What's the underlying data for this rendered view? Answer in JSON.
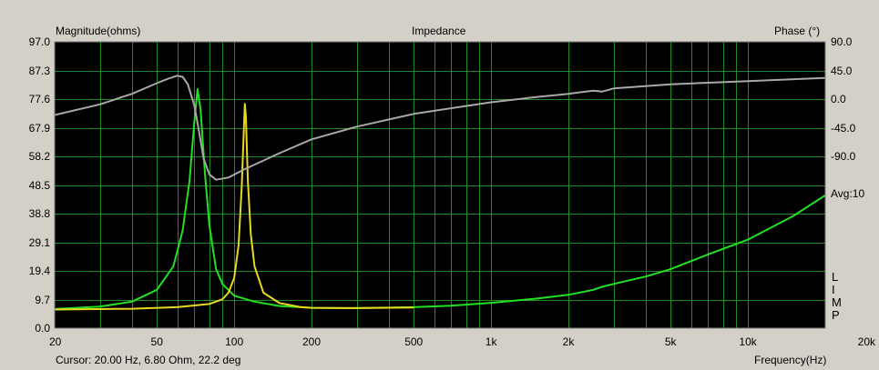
{
  "chart_data": {
    "type": "line",
    "title": "Impedance",
    "ylabel_left": "Magnitude(ohms)",
    "ylabel_right": "Phase (°)",
    "xlabel": "Frequency(Hz)",
    "x_scale": "log",
    "xlim": [
      20,
      20000
    ],
    "ylim_left": [
      0,
      97
    ],
    "ylim_right": [
      -180,
      90
    ],
    "grid": true,
    "background": "#000000",
    "grid_color": "#1f8a1f",
    "y_ticks_left": [
      "97.0",
      "87.3",
      "77.6",
      "67.9",
      "58.2",
      "48.5",
      "38.8",
      "29.1",
      "19.4",
      "9.7",
      "0.0"
    ],
    "y_ticks_right": [
      "90.0",
      "45.0",
      "0.0",
      "-45.0",
      "-90.0"
    ],
    "x_ticks": [
      {
        "value": 20,
        "label": "20"
      },
      {
        "value": 50,
        "label": "50"
      },
      {
        "value": 100,
        "label": "100"
      },
      {
        "value": 200,
        "label": "200"
      },
      {
        "value": 500,
        "label": "500"
      },
      {
        "value": 1000,
        "label": "1k"
      },
      {
        "value": 2000,
        "label": "2k"
      },
      {
        "value": 5000,
        "label": "5k"
      },
      {
        "value": 10000,
        "label": "10k"
      },
      {
        "value": 20000,
        "label": "20k"
      }
    ],
    "annotation_avg": "Avg:10",
    "annotation_limp": [
      "L",
      "I",
      "M",
      "P"
    ],
    "series": [
      {
        "color": "#22e022",
        "axis": "left",
        "points": [
          [
            20,
            6.5
          ],
          [
            30,
            7.3
          ],
          [
            40,
            9
          ],
          [
            50,
            13
          ],
          [
            58,
            21
          ],
          [
            63,
            33
          ],
          [
            67,
            50
          ],
          [
            70,
            70
          ],
          [
            72,
            81
          ],
          [
            74,
            74
          ],
          [
            77,
            52
          ],
          [
            80,
            35
          ],
          [
            85,
            20
          ],
          [
            90,
            15
          ],
          [
            100,
            11
          ],
          [
            120,
            9
          ],
          [
            150,
            7.5
          ],
          [
            200,
            6.9
          ],
          [
            300,
            6.8
          ],
          [
            500,
            7.1
          ],
          [
            700,
            7.6
          ],
          [
            1000,
            8.6
          ],
          [
            1500,
            10
          ],
          [
            2000,
            11.3
          ],
          [
            2500,
            13
          ],
          [
            2700,
            14
          ],
          [
            3000,
            15
          ],
          [
            4000,
            17.5
          ],
          [
            5000,
            20
          ],
          [
            7000,
            25
          ],
          [
            10000,
            30
          ],
          [
            15000,
            38
          ],
          [
            20000,
            45
          ]
        ]
      },
      {
        "color": "#e8d820",
        "axis": "left",
        "points": [
          [
            20,
            6.3
          ],
          [
            40,
            6.6
          ],
          [
            60,
            7.1
          ],
          [
            80,
            8.2
          ],
          [
            90,
            9.8
          ],
          [
            95,
            12
          ],
          [
            100,
            17
          ],
          [
            104,
            28
          ],
          [
            107,
            48
          ],
          [
            109,
            67
          ],
          [
            110,
            76
          ],
          [
            111,
            72
          ],
          [
            113,
            50
          ],
          [
            116,
            32
          ],
          [
            120,
            21
          ],
          [
            130,
            12
          ],
          [
            150,
            8.5
          ],
          [
            180,
            7.2
          ],
          [
            200,
            6.9
          ],
          [
            300,
            6.8
          ],
          [
            500,
            7
          ]
        ]
      },
      {
        "color": "#a8a8a8",
        "axis": "right",
        "points": [
          [
            20,
            21
          ],
          [
            30,
            31
          ],
          [
            40,
            41
          ],
          [
            50,
            51
          ],
          [
            55,
            55
          ],
          [
            60,
            58
          ],
          [
            63,
            57
          ],
          [
            66,
            50
          ],
          [
            70,
            30
          ],
          [
            73,
            5
          ],
          [
            76,
            -20
          ],
          [
            80,
            -35
          ],
          [
            85,
            -40
          ],
          [
            95,
            -38
          ],
          [
            110,
            -30
          ],
          [
            150,
            -15
          ],
          [
            200,
            -2
          ],
          [
            300,
            10
          ],
          [
            500,
            22
          ],
          [
            1000,
            33
          ],
          [
            1500,
            38
          ],
          [
            2000,
            41
          ],
          [
            2500,
            44
          ],
          [
            2700,
            43
          ],
          [
            3000,
            46
          ],
          [
            5000,
            50
          ],
          [
            10000,
            53
          ],
          [
            20000,
            56
          ]
        ]
      }
    ]
  },
  "cursor_readout": "Cursor: 20.00 Hz, 6.80 Ohm, 22.2 deg"
}
